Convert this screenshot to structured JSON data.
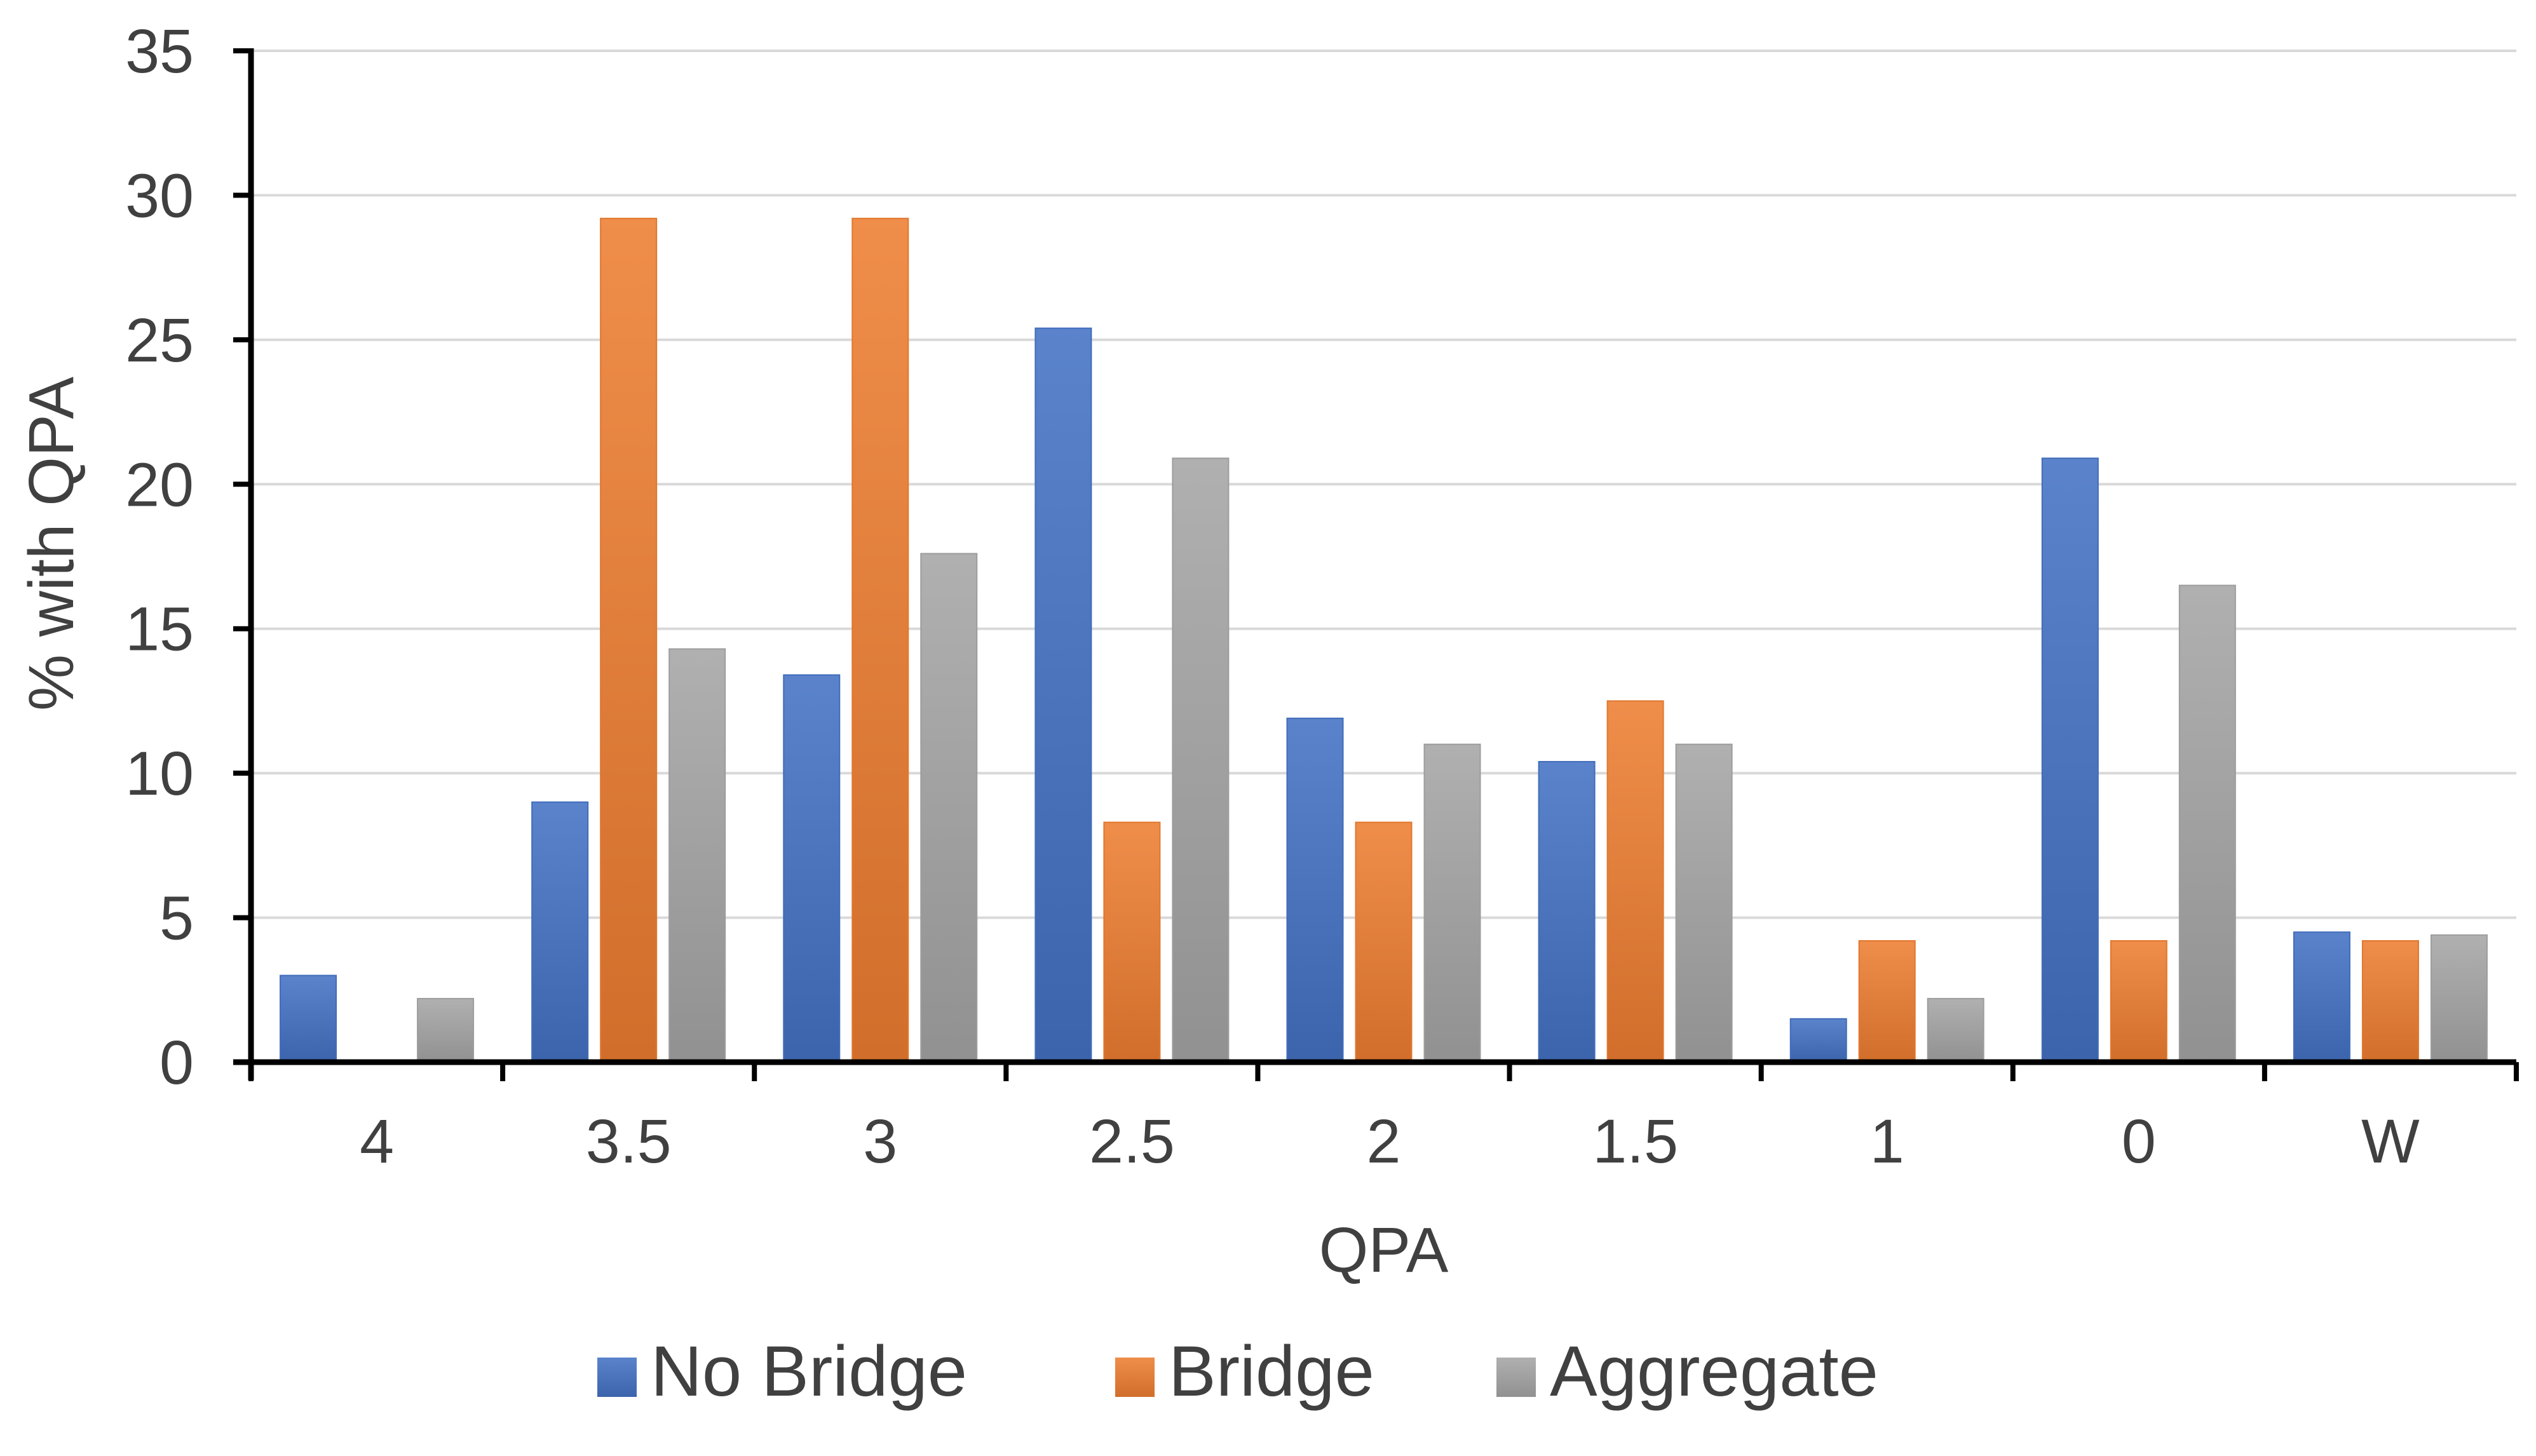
{
  "chart_data": {
    "type": "bar",
    "title": "",
    "xlabel": "QPA",
    "ylabel": "% with QPA",
    "ylim": [
      0,
      35
    ],
    "yticks": [
      0,
      5,
      10,
      15,
      20,
      25,
      30,
      35
    ],
    "grid": true,
    "legend_position": "bottom",
    "categories": [
      "4",
      "3.5",
      "3",
      "2.5",
      "2",
      "1.5",
      "1",
      "0",
      "W"
    ],
    "series": [
      {
        "name": "No Bridge",
        "color": "#4472C4",
        "values": [
          3.0,
          9.0,
          13.4,
          25.4,
          11.9,
          10.4,
          1.5,
          20.9,
          4.5
        ]
      },
      {
        "name": "Bridge",
        "color": "#ED7D31",
        "values": [
          0,
          29.2,
          29.2,
          8.3,
          8.3,
          12.5,
          4.2,
          4.2,
          4.2
        ]
      },
      {
        "name": "Aggregate",
        "color": "#A5A5A5",
        "values": [
          2.2,
          14.3,
          17.6,
          20.9,
          11.0,
          11.0,
          2.2,
          16.5,
          4.4
        ]
      }
    ]
  }
}
